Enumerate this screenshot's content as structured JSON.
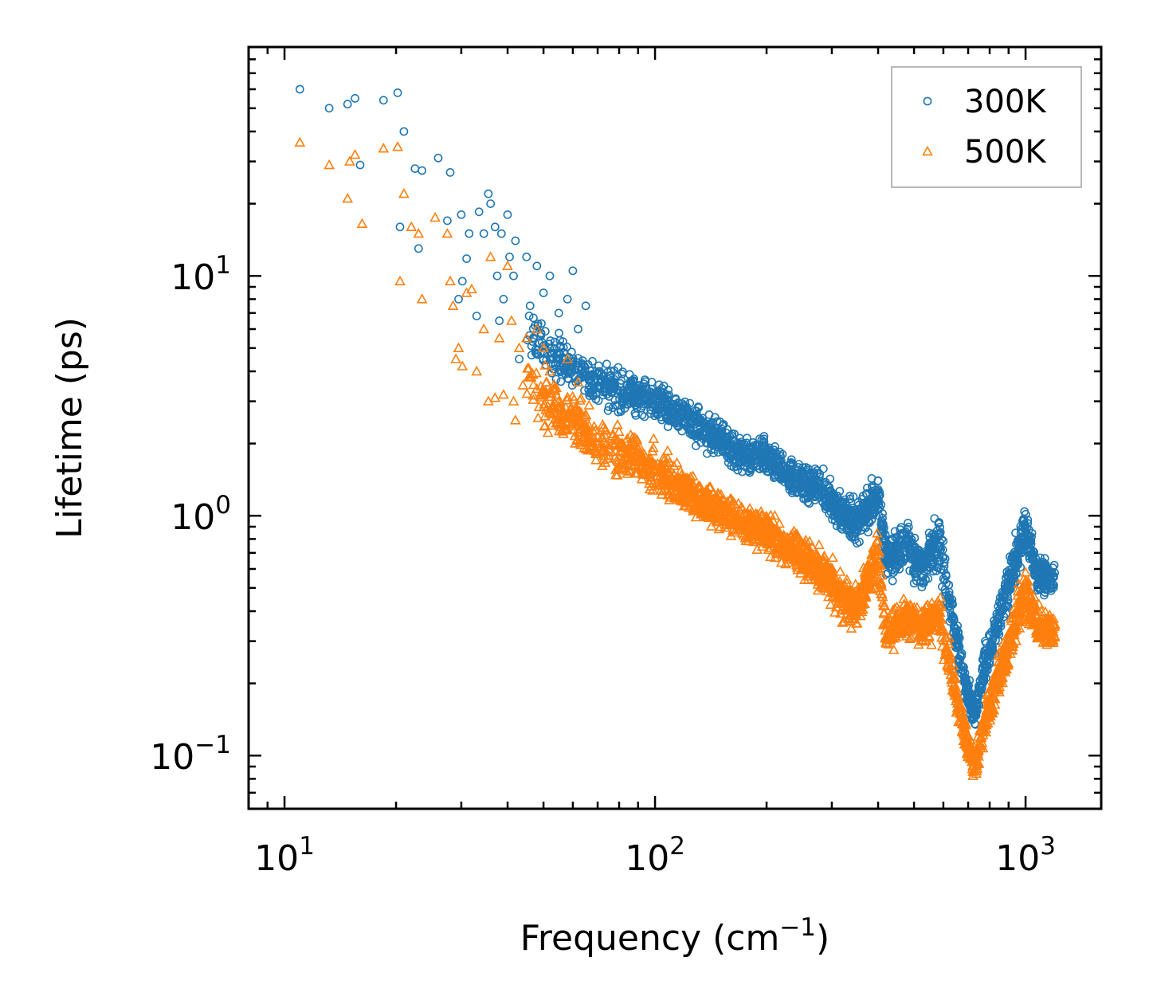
{
  "chart_data": {
    "type": "scatter",
    "title": "",
    "xscale": "log",
    "yscale": "log",
    "xlim": [
      8,
      1600
    ],
    "ylim": [
      0.06,
      90
    ],
    "xlabel": {
      "text": "Frequency (cm",
      "sup": "−1",
      "suffix": ")"
    },
    "ylabel": "Lifetime (ps)",
    "xticks": [
      {
        "value": 10,
        "base": "10",
        "exp": "1"
      },
      {
        "value": 100,
        "base": "10",
        "exp": "2"
      },
      {
        "value": 1000,
        "base": "10",
        "exp": "3"
      }
    ],
    "yticks": [
      {
        "value": 0.1,
        "base": "10",
        "exp": "−1"
      },
      {
        "value": 1,
        "base": "10",
        "exp": "0"
      },
      {
        "value": 10,
        "base": "10",
        "exp": "1"
      }
    ],
    "legend": {
      "position": "top-right"
    },
    "series": [
      {
        "name": "300K",
        "marker": "circle",
        "color": "#1f77b4",
        "points": [
          [
            11,
            60
          ],
          [
            13.2,
            50
          ],
          [
            14.8,
            52
          ],
          [
            15.5,
            55
          ],
          [
            16,
            29
          ],
          [
            18.5,
            54
          ],
          [
            20.2,
            58
          ],
          [
            20.5,
            16
          ],
          [
            21,
            40
          ],
          [
            22.5,
            28
          ],
          [
            23,
            13
          ],
          [
            23.5,
            27.5
          ],
          [
            26,
            31
          ],
          [
            27.5,
            17
          ],
          [
            28,
            27
          ],
          [
            29.5,
            8
          ],
          [
            30,
            18
          ],
          [
            30.2,
            9.5
          ],
          [
            31,
            11.8
          ],
          [
            31.5,
            15
          ],
          [
            33,
            6.8
          ],
          [
            33.5,
            18.5
          ],
          [
            34.5,
            15
          ],
          [
            35.5,
            22
          ],
          [
            36,
            20
          ],
          [
            37,
            16
          ],
          [
            37.5,
            10
          ],
          [
            38,
            6.5
          ],
          [
            38.5,
            15
          ],
          [
            39,
            8
          ],
          [
            40,
            18
          ],
          [
            40.5,
            12
          ],
          [
            41.5,
            10
          ],
          [
            42,
            14
          ],
          [
            43,
            4.5
          ],
          [
            45,
            12
          ],
          [
            46,
            7.5
          ],
          [
            48,
            11
          ],
          [
            50,
            8.5
          ],
          [
            52,
            10
          ],
          [
            55,
            7
          ],
          [
            58,
            8
          ],
          [
            60,
            10.5
          ],
          [
            62,
            6
          ],
          [
            65,
            7.5
          ]
        ],
        "envelope": [
          [
            45,
            6,
            1.3
          ],
          [
            55,
            4.5,
            1.25
          ],
          [
            70,
            3.5,
            1.25
          ],
          [
            90,
            3.2,
            1.2
          ],
          [
            110,
            2.8,
            1.2
          ],
          [
            140,
            2.2,
            1.2
          ],
          [
            170,
            1.8,
            1.18
          ],
          [
            200,
            1.75,
            1.18
          ],
          [
            240,
            1.4,
            1.18
          ],
          [
            280,
            1.3,
            1.2
          ],
          [
            320,
            1.0,
            1.2
          ],
          [
            350,
            0.95,
            1.2
          ],
          [
            380,
            1.1,
            1.25
          ],
          [
            400,
            1.25,
            1.2
          ],
          [
            420,
            0.65,
            1.2
          ],
          [
            480,
            0.75,
            1.25
          ],
          [
            530,
            0.6,
            1.25
          ],
          [
            580,
            0.8,
            1.3
          ],
          [
            640,
            0.35,
            1.2
          ],
          [
            700,
            0.18,
            1.18
          ],
          [
            730,
            0.15,
            1.15
          ],
          [
            780,
            0.25,
            1.2
          ],
          [
            850,
            0.38,
            1.2
          ],
          [
            950,
            0.7,
            1.25
          ],
          [
            1000,
            0.9,
            1.25
          ],
          [
            1080,
            0.55,
            1.2
          ],
          [
            1200,
            0.55,
            1.15
          ]
        ]
      },
      {
        "name": "500K",
        "marker": "triangle",
        "color": "#ff7f0e",
        "points": [
          [
            11,
            36
          ],
          [
            13.2,
            29
          ],
          [
            14.8,
            21
          ],
          [
            15,
            30
          ],
          [
            15.5,
            32
          ],
          [
            16.2,
            16.5
          ],
          [
            18.5,
            34
          ],
          [
            20.2,
            34.5
          ],
          [
            20.5,
            9.5
          ],
          [
            21,
            22
          ],
          [
            22,
            16
          ],
          [
            23,
            15
          ],
          [
            23.5,
            8
          ],
          [
            25.5,
            17.5
          ],
          [
            27.5,
            15
          ],
          [
            28,
            9.5
          ],
          [
            28.5,
            7.5
          ],
          [
            29,
            4.5
          ],
          [
            29.5,
            5
          ],
          [
            30.2,
            4.2
          ],
          [
            31,
            8.5
          ],
          [
            32,
            8.8
          ],
          [
            33,
            4
          ],
          [
            34.5,
            6
          ],
          [
            35.5,
            3
          ],
          [
            36,
            12
          ],
          [
            37,
            3.1
          ],
          [
            38,
            5.5
          ],
          [
            39,
            3.2
          ],
          [
            40,
            11
          ],
          [
            41,
            6.5
          ],
          [
            41.5,
            3
          ],
          [
            42,
            2.5
          ],
          [
            43,
            5
          ],
          [
            44,
            3.5
          ],
          [
            45,
            5.5
          ],
          [
            46,
            3.8
          ],
          [
            48,
            6
          ],
          [
            50,
            5
          ],
          [
            52,
            4
          ],
          [
            55,
            3
          ],
          [
            58,
            4.5
          ],
          [
            60,
            2.6
          ],
          [
            62,
            3.6
          ],
          [
            65,
            2.4
          ]
        ],
        "envelope": [
          [
            45,
            3.5,
            1.3
          ],
          [
            55,
            2.8,
            1.3
          ],
          [
            70,
            2.0,
            1.25
          ],
          [
            90,
            1.7,
            1.25
          ],
          [
            110,
            1.4,
            1.25
          ],
          [
            140,
            1.1,
            1.2
          ],
          [
            170,
            0.95,
            1.2
          ],
          [
            200,
            0.85,
            1.2
          ],
          [
            240,
            0.72,
            1.22
          ],
          [
            280,
            0.6,
            1.22
          ],
          [
            320,
            0.45,
            1.22
          ],
          [
            350,
            0.42,
            1.22
          ],
          [
            380,
            0.55,
            1.25
          ],
          [
            400,
            0.7,
            1.2
          ],
          [
            420,
            0.32,
            1.2
          ],
          [
            480,
            0.38,
            1.2
          ],
          [
            530,
            0.34,
            1.2
          ],
          [
            580,
            0.4,
            1.22
          ],
          [
            640,
            0.2,
            1.2
          ],
          [
            700,
            0.11,
            1.18
          ],
          [
            730,
            0.09,
            1.15
          ],
          [
            780,
            0.14,
            1.2
          ],
          [
            850,
            0.22,
            1.2
          ],
          [
            950,
            0.38,
            1.25
          ],
          [
            1000,
            0.48,
            1.25
          ],
          [
            1080,
            0.35,
            1.2
          ],
          [
            1200,
            0.33,
            1.15
          ]
        ]
      }
    ]
  }
}
